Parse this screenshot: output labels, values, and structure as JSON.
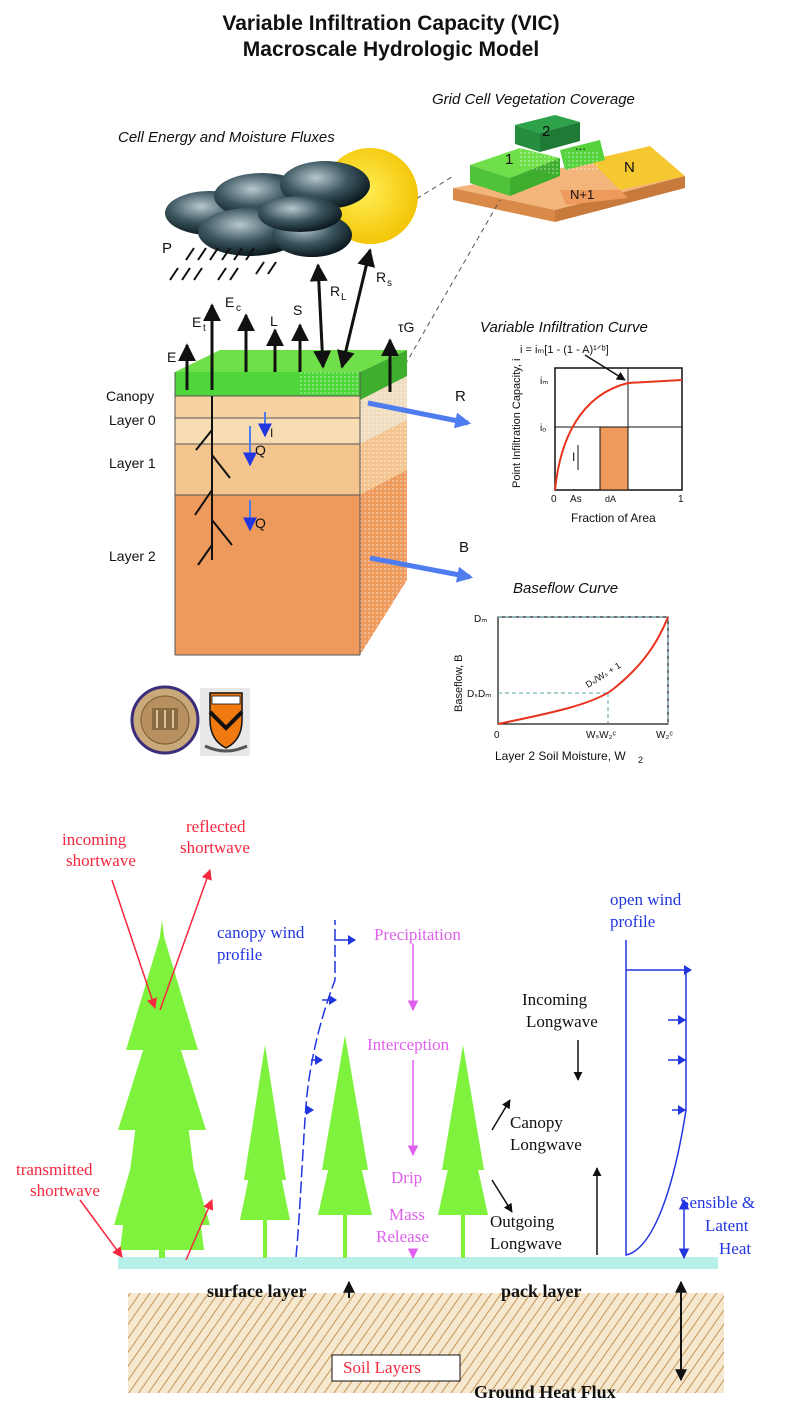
{
  "title": {
    "line1": "Variable Infiltration Capacity (VIC)",
    "line2": "Macroscale Hydrologic Model"
  },
  "top_panel": {
    "fluxes_heading": "Cell Energy and Moisture Fluxes",
    "vegetation_heading": "Grid Cell Vegetation Coverage",
    "tiles": {
      "t1": "1",
      "t2": "2",
      "dots": "...",
      "tn": "N",
      "tn1": "N+1"
    },
    "flux_labels": {
      "P": "P",
      "E": "E",
      "Et": "E",
      "Et_sub": "t",
      "Ec": "E",
      "Ec_sub": "c",
      "L": "L",
      "S": "S",
      "RL": "R",
      "RL_sub": "L",
      "Rs": "R",
      "Rs_sub": "s",
      "G": "τG",
      "R": "R",
      "B": "B",
      "I": "I",
      "Q1": "Q",
      "Q2": "Q"
    },
    "layers": [
      "Canopy",
      "Layer 0",
      "Layer 1",
      "Layer 2"
    ]
  },
  "infiltration_curve": {
    "title": "Variable Infiltration Curve",
    "equation": "i = iₘ[1 - (1 - A)¹ᐟᵇ]",
    "ylabel": "Point Infiltration Capacity, i",
    "xlabel": "Fraction of Area",
    "ticks": {
      "x0": "0",
      "xAs": "As",
      "xdA": "dA",
      "x1": "1",
      "ym": "iₘ",
      "yo": "iₒ"
    },
    "I_label": "I"
  },
  "baseflow_curve": {
    "title": "Baseflow Curve",
    "ylabel": "Baseflow, B",
    "xlabel": "Layer 2 Soil Moisture, W",
    "xlabel_sub": "2",
    "ticks": {
      "x0": "0",
      "xmid": "WₛW₂ᶜ",
      "xmax": "W₂ᶜ",
      "ytop": "Dₘ",
      "ymid": "DₛDₘ"
    },
    "annotation": "Dₛ/Wₛ + 1"
  },
  "bottom_panel": {
    "incoming_shortwave": [
      "incoming",
      "shortwave"
    ],
    "reflected_shortwave": [
      "reflected",
      "shortwave"
    ],
    "transmitted_shortwave": [
      "transmitted",
      "shortwave"
    ],
    "canopy_wind_profile": [
      "canopy wind",
      "profile"
    ],
    "open_wind_profile": [
      "open wind",
      "profile"
    ],
    "precipitation": "Precipitation",
    "interception": "Interception",
    "drip": "Drip",
    "mass_release": [
      "Mass",
      "Release"
    ],
    "incoming_longwave": [
      "Incoming",
      "Longwave"
    ],
    "canopy_longwave": [
      "Canopy",
      "Longwave"
    ],
    "outgoing_longwave": [
      "Outgoing",
      "Longwave"
    ],
    "sensible_latent": [
      "Sensible &",
      "Latent",
      "Heat"
    ],
    "surface_layer": "surface layer",
    "pack_layer": "pack layer",
    "soil_layers": "Soil Layers",
    "ground_heat_flux": "Ground Heat Flux"
  },
  "colors": {
    "canopy_green": "#4fd63a",
    "tree_green": "#7ef23c",
    "soil_light": "#f8d3a2",
    "soil_mid": "#f3b57a",
    "soil_dark": "#ee9a5d",
    "red_text": "#f5283e",
    "blue_text": "#2236e0",
    "magenta_text": "#e060ee",
    "arrow_blue": "#4f7df0",
    "curve_red": "#e8341e",
    "snow_surface": "#b6f0e8"
  }
}
